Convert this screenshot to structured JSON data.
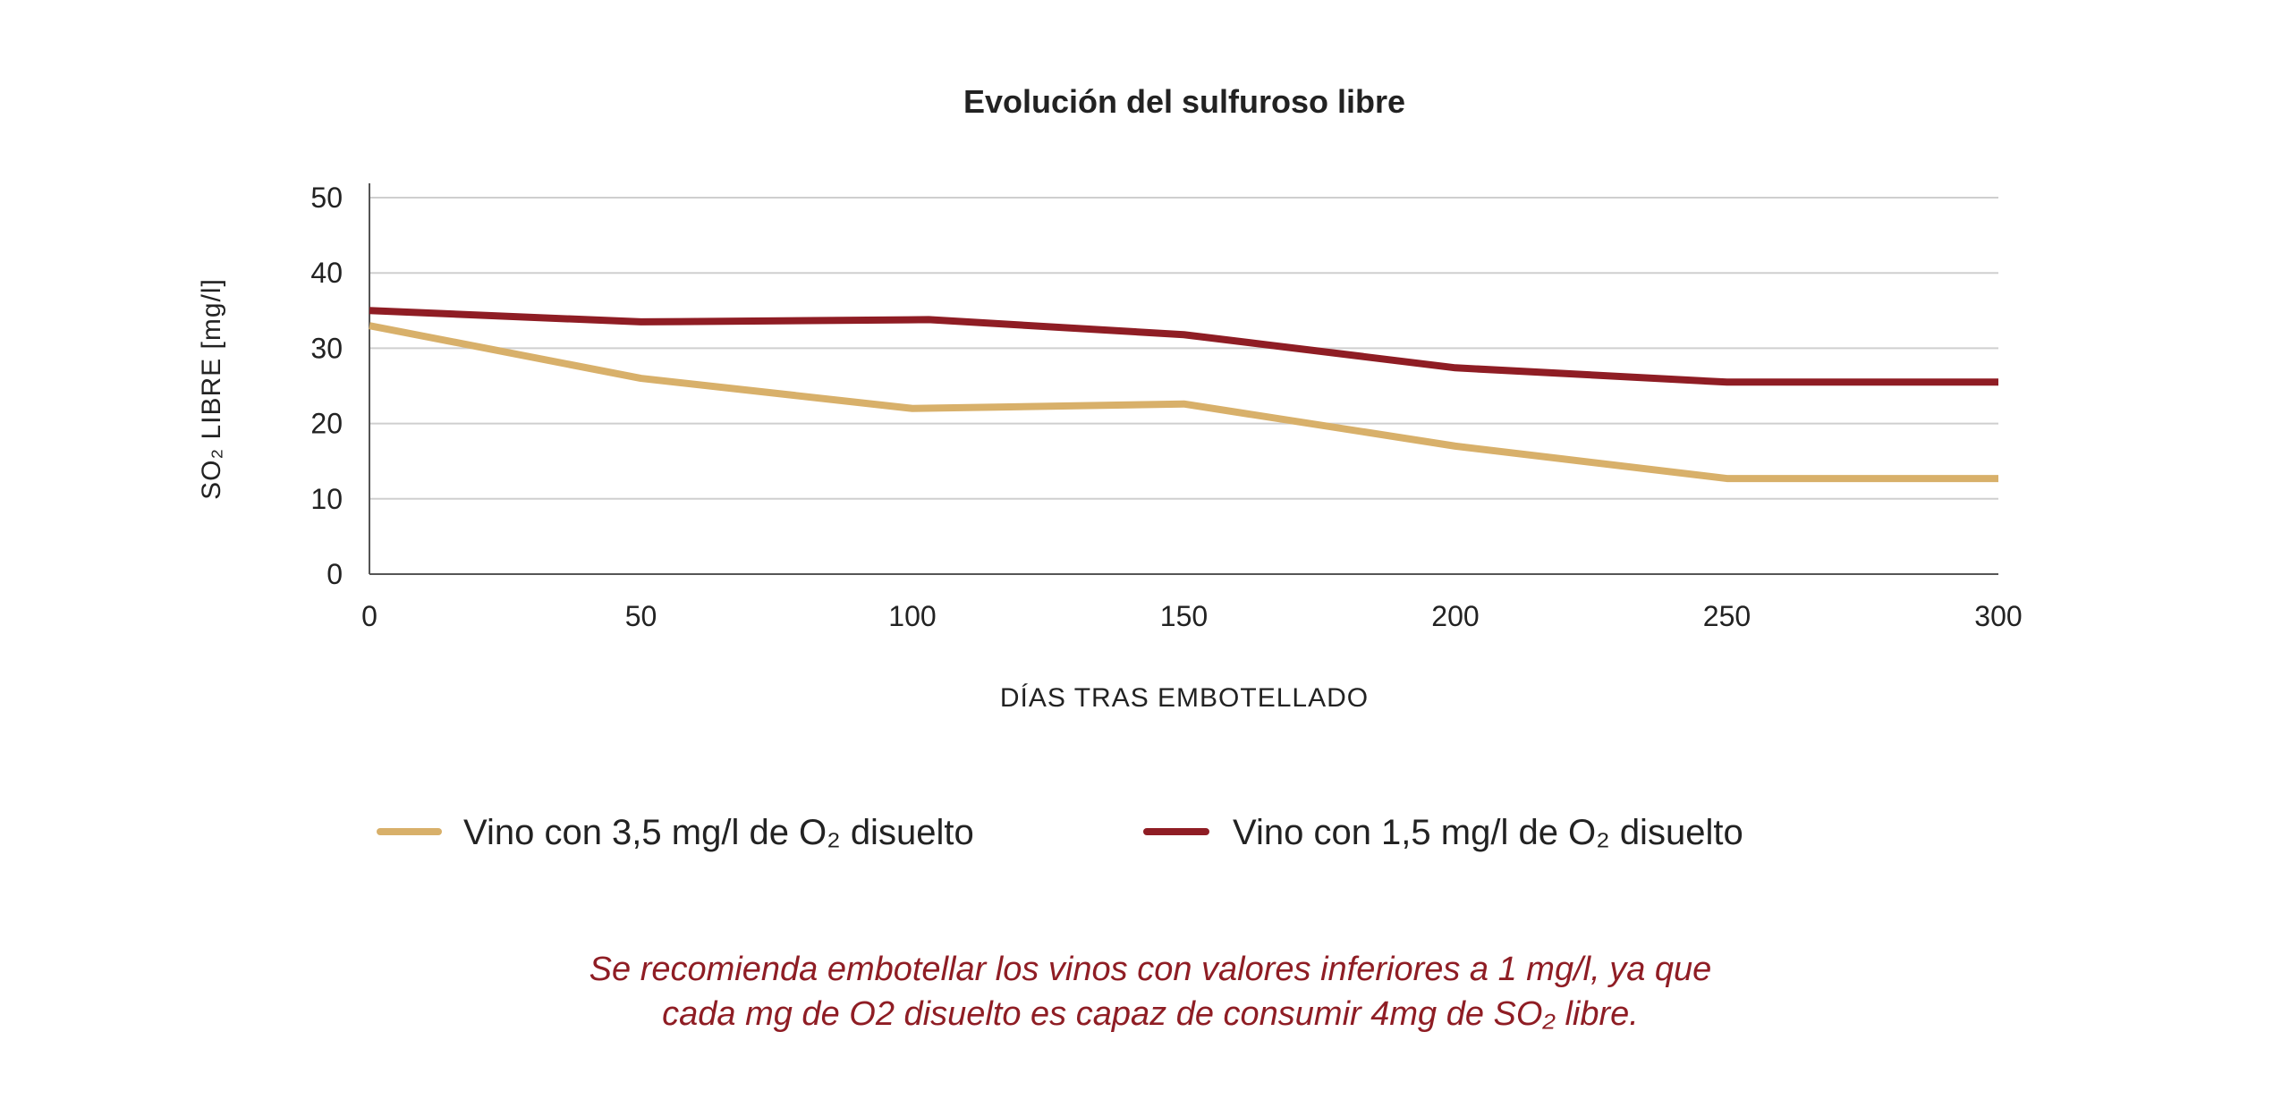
{
  "chart_data": {
    "type": "line",
    "title": "Evolución del sulfuroso libre",
    "xlabel": "DÍAS TRAS EMBOTELLADO",
    "ylabel": "SO₂ LIBRE [mg/l]",
    "xlim": [
      0,
      300
    ],
    "ylim": [
      0,
      50
    ],
    "xticks": [
      "0",
      "50",
      "100",
      "150",
      "200",
      "250",
      "300"
    ],
    "yticks": [
      "0",
      "10",
      "20",
      "30",
      "40",
      "50"
    ],
    "grid": true,
    "legend_position": "bottom",
    "series": [
      {
        "name": "Vino con 3,5 mg/l de O₂ disuelto",
        "color": "#d8b06a",
        "x": [
          0,
          50,
          100,
          150,
          200,
          250,
          300
        ],
        "y": [
          33,
          26,
          22,
          22.6,
          17,
          12.7,
          12.7
        ]
      },
      {
        "name": "Vino con 1,5 mg/l de O₂ disuelto",
        "color": "#8f1d24",
        "x": [
          0,
          50,
          103,
          150,
          200,
          250,
          300
        ],
        "y": [
          35,
          33.5,
          33.8,
          31.8,
          27.4,
          25.5,
          25.5
        ]
      }
    ],
    "note": [
      "Se recomienda embotellar los vinos con valores inferiores a 1 mg/l, ya que",
      "cada mg de O2 disuelto es capaz de consumir 4mg de SO₂ libre."
    ]
  }
}
